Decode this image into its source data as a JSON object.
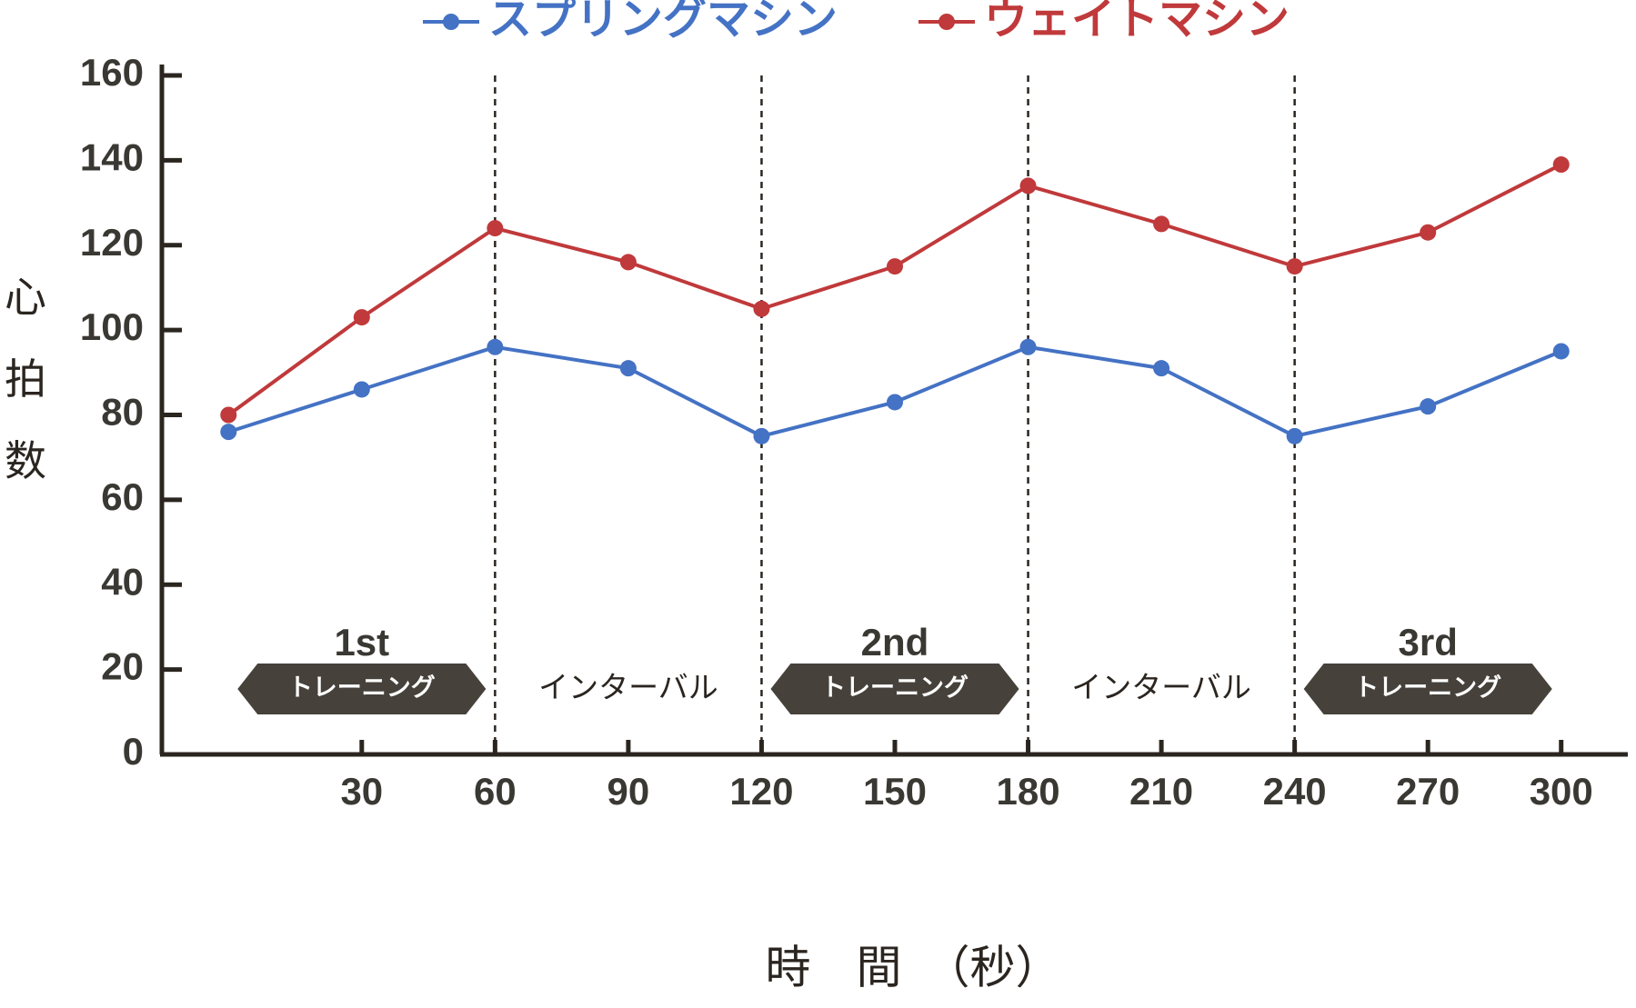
{
  "chart_data": {
    "type": "line",
    "x_label": "時　間　（秒）",
    "y_label": "心拍数",
    "x": [
      0,
      30,
      60,
      90,
      120,
      150,
      180,
      210,
      240,
      270,
      300
    ],
    "series": [
      {
        "name": "スプリングマシン",
        "color": "#4472c4",
        "values": [
          76,
          86,
          96,
          91,
          75,
          83,
          96,
          91,
          75,
          82,
          95
        ]
      },
      {
        "name": "ウェイトマシン",
        "color": "#c0393b",
        "values": [
          80,
          103,
          124,
          116,
          105,
          115,
          134,
          125,
          115,
          123,
          139
        ]
      }
    ],
    "xlim": [
      -15,
      315
    ],
    "xticks": [
      30,
      60,
      90,
      120,
      150,
      180,
      210,
      240,
      270,
      300
    ],
    "ylim": [
      0,
      160
    ],
    "yticks": [
      0,
      20,
      40,
      60,
      80,
      100,
      120,
      140,
      160
    ],
    "vlines": [
      60,
      120,
      180,
      240
    ],
    "phases": [
      {
        "label": "1st",
        "text": "トレーニング",
        "range": [
          0,
          60
        ]
      },
      {
        "text": "インターバル",
        "range": [
          60,
          120
        ]
      },
      {
        "label": "2nd",
        "text": "トレーニング",
        "range": [
          120,
          180
        ]
      },
      {
        "text": "インターバル",
        "range": [
          180,
          240
        ]
      },
      {
        "label": "3rd",
        "text": "トレーニング",
        "range": [
          240,
          300
        ]
      }
    ]
  }
}
